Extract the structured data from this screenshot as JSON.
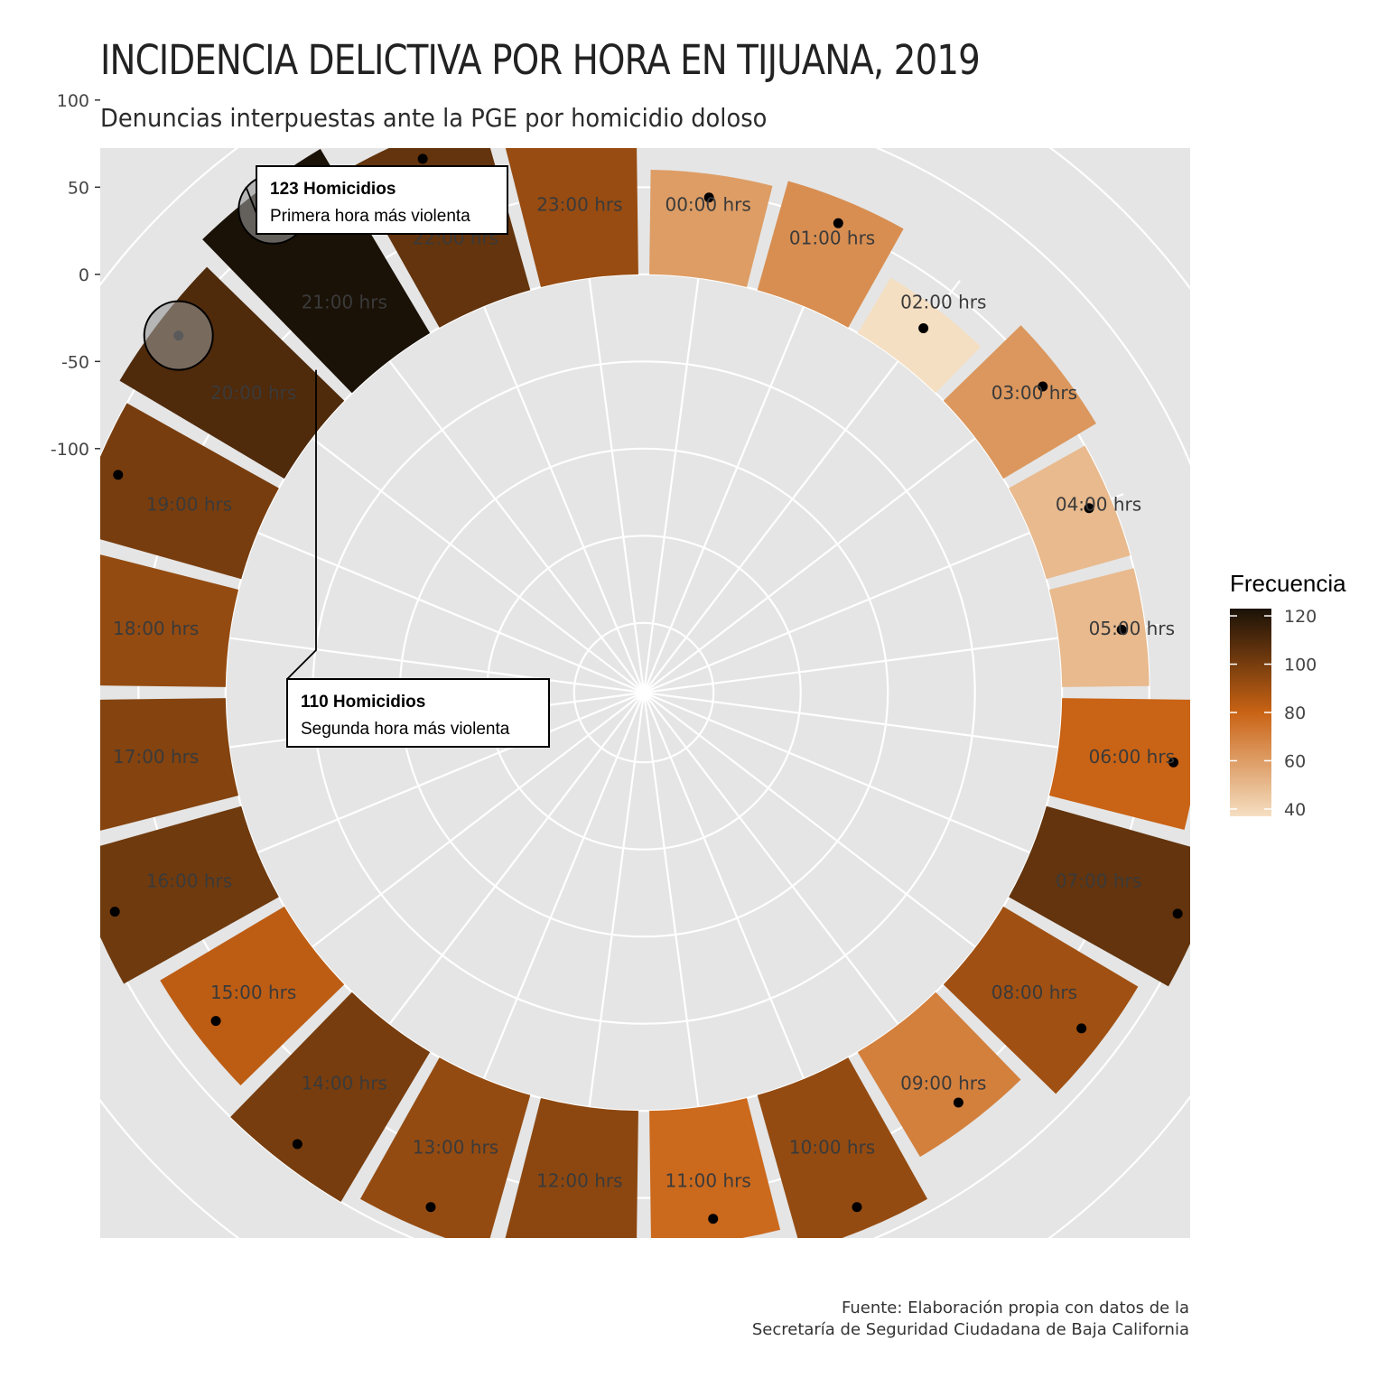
{
  "title": "INCIDENCIA DELICTIVA POR HORA EN TIJUANA, 2019",
  "subtitle": "Denuncias interpuestas ante la PGE por homicidio doloso",
  "caption": {
    "line1": "Fuente: Elaboración propia con datos de la",
    "line2": "Secretaría de Seguridad Ciudadana de Baja California"
  },
  "chart_data": {
    "type": "bar",
    "polar": true,
    "categories": [
      "00:00 hrs",
      "01:00 hrs",
      "02:00 hrs",
      "03:00 hrs",
      "04:00 hrs",
      "05:00 hrs",
      "06:00 hrs",
      "07:00 hrs",
      "08:00 hrs",
      "09:00 hrs",
      "10:00 hrs",
      "11:00 hrs",
      "12:00 hrs",
      "13:00 hrs",
      "14:00 hrs",
      "15:00 hrs",
      "16:00 hrs",
      "17:00 hrs",
      "18:00 hrs",
      "19:00 hrs",
      "20:00 hrs",
      "21:00 hrs",
      "22:00 hrs",
      "23:00 hrs"
    ],
    "values": [
      60,
      65,
      37,
      62,
      50,
      50,
      80,
      105,
      90,
      70,
      93,
      78,
      95,
      93,
      100,
      83,
      102,
      97,
      93,
      100,
      110,
      123,
      105,
      92
    ],
    "ylim": [
      -240,
      160
    ],
    "ylabel_ticks": [
      100,
      50,
      0,
      -50,
      -100
    ],
    "grid": true,
    "legend": {
      "title": "Frecuencia",
      "position": "right",
      "ticks": [
        120,
        100,
        80,
        60,
        40
      ],
      "range": [
        37,
        123
      ]
    },
    "colors": {
      "low": "#f5dfc2",
      "mid": "#c96315",
      "high": "#1a1207",
      "panel": "#e5e5e5",
      "grid": "#ffffff"
    },
    "annotations": [
      {
        "category": "21:00 hrs",
        "value": 123,
        "title": "123 Homicidios",
        "text": "Primera hora más violenta"
      },
      {
        "category": "20:00 hrs",
        "value": 110,
        "title": "110 Homicidios",
        "text": "Segunda hora más violenta"
      }
    ]
  }
}
